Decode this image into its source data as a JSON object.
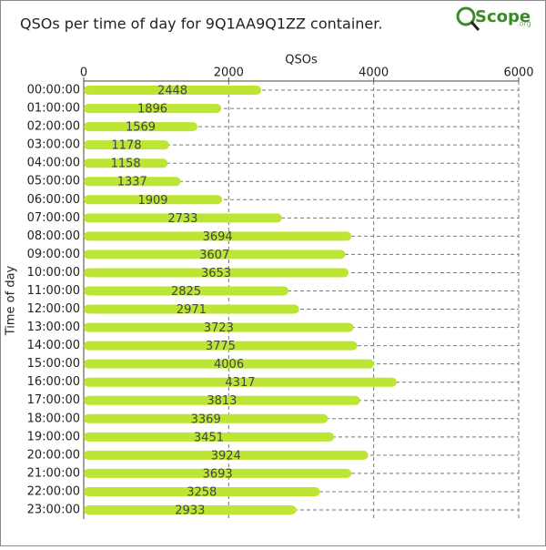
{
  "chart_data": {
    "type": "bar",
    "orientation": "horizontal",
    "title": "QSOs per time of day for 9Q1AA9Q1ZZ container.",
    "x_label": "QSOs",
    "y_label": "Time of day",
    "categories": [
      "00:00:00",
      "01:00:00",
      "02:00:00",
      "03:00:00",
      "04:00:00",
      "05:00:00",
      "06:00:00",
      "07:00:00",
      "08:00:00",
      "09:00:00",
      "10:00:00",
      "11:00:00",
      "12:00:00",
      "13:00:00",
      "14:00:00",
      "15:00:00",
      "16:00:00",
      "17:00:00",
      "18:00:00",
      "19:00:00",
      "20:00:00",
      "21:00:00",
      "22:00:00",
      "23:00:00"
    ],
    "values": [
      2448,
      1896,
      1569,
      1178,
      1158,
      1337,
      1909,
      2733,
      3694,
      3607,
      3653,
      2825,
      2971,
      3723,
      3775,
      4006,
      4317,
      3813,
      3369,
      3451,
      3924,
      3693,
      3258,
      2933
    ],
    "color": "#bde534",
    "xlim": [
      0,
      6000
    ],
    "xticks": [
      0,
      2000,
      4000,
      6000
    ],
    "grid": true
  },
  "logo": {
    "text": "Scope",
    "suffix": ".org"
  }
}
